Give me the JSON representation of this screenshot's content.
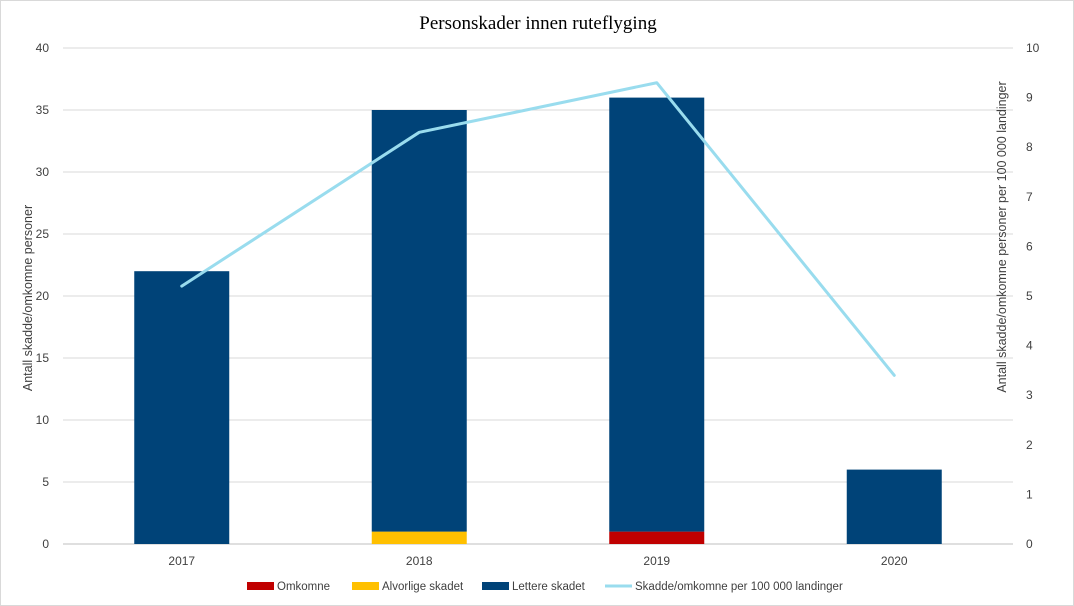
{
  "chart_data": {
    "type": "bar",
    "title": "Personskader innen ruteflyging",
    "categories": [
      "2017",
      "2018",
      "2019",
      "2020"
    ],
    "series": [
      {
        "name": "Omkomne",
        "type": "bar",
        "axis": "left",
        "color": "#c00000",
        "values": [
          0,
          0,
          1,
          0
        ]
      },
      {
        "name": "Alvorlige skadet",
        "type": "bar",
        "axis": "left",
        "color": "#ffc000",
        "values": [
          0,
          1,
          0,
          0
        ]
      },
      {
        "name": "Lettere skadet",
        "type": "bar",
        "axis": "left",
        "color": "#004378",
        "values": [
          22,
          34,
          35,
          6
        ]
      },
      {
        "name": "Skadde/omkomne per 100 000 landinger",
        "type": "line",
        "axis": "right",
        "color": "#99dcee",
        "values": [
          5.2,
          8.3,
          9.3,
          3.4
        ]
      }
    ],
    "ylabel": "Antall skadde/omkomne personer",
    "y2label": "Antall skadde/omkomne personer per 100 000 landinger",
    "ylim": [
      0,
      40
    ],
    "yticks": [
      "0",
      "5",
      "10",
      "15",
      "20",
      "25",
      "30",
      "35",
      "40"
    ],
    "y2lim": [
      0,
      10
    ],
    "y2ticks": [
      "0",
      "1",
      "2",
      "3",
      "4",
      "5",
      "6",
      "7",
      "8",
      "9",
      "10"
    ],
    "stacked": true,
    "grid": true,
    "legend_position": "bottom"
  }
}
